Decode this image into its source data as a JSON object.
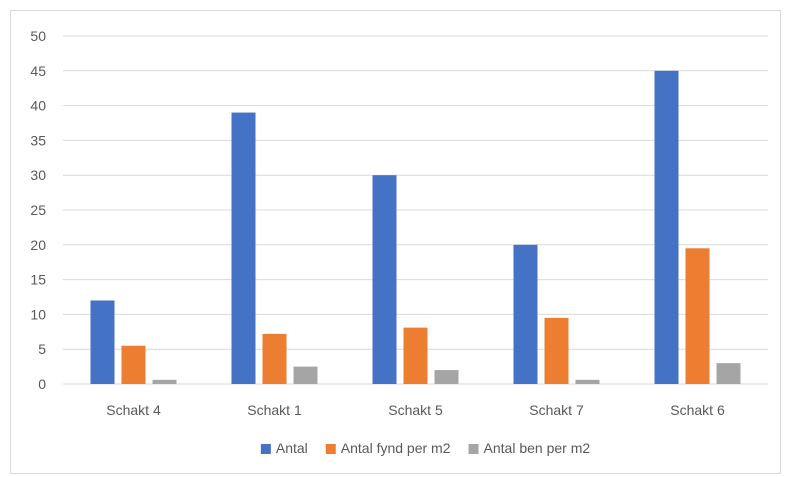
{
  "chart_data": {
    "type": "bar",
    "categories": [
      "Schakt 4",
      "Schakt 1",
      "Schakt 5",
      "Schakt 7",
      "Schakt 6"
    ],
    "series": [
      {
        "name": "Antal",
        "color": "#4472c4",
        "values": [
          12,
          39,
          30,
          20,
          45
        ]
      },
      {
        "name": "Antal fynd per m2",
        "color": "#ed7d31",
        "values": [
          5.5,
          7.2,
          8.1,
          9.5,
          19.5
        ]
      },
      {
        "name": "Antal ben per m2",
        "color": "#a5a5a5",
        "values": [
          0.6,
          2.5,
          2.0,
          0.6,
          3.0
        ]
      }
    ],
    "ylim": [
      0,
      50
    ],
    "yticks": [
      0,
      5,
      10,
      15,
      20,
      25,
      30,
      35,
      40,
      45,
      50
    ],
    "title": "",
    "xlabel": "",
    "ylabel": "",
    "grid": true,
    "legend_position": "bottom"
  }
}
